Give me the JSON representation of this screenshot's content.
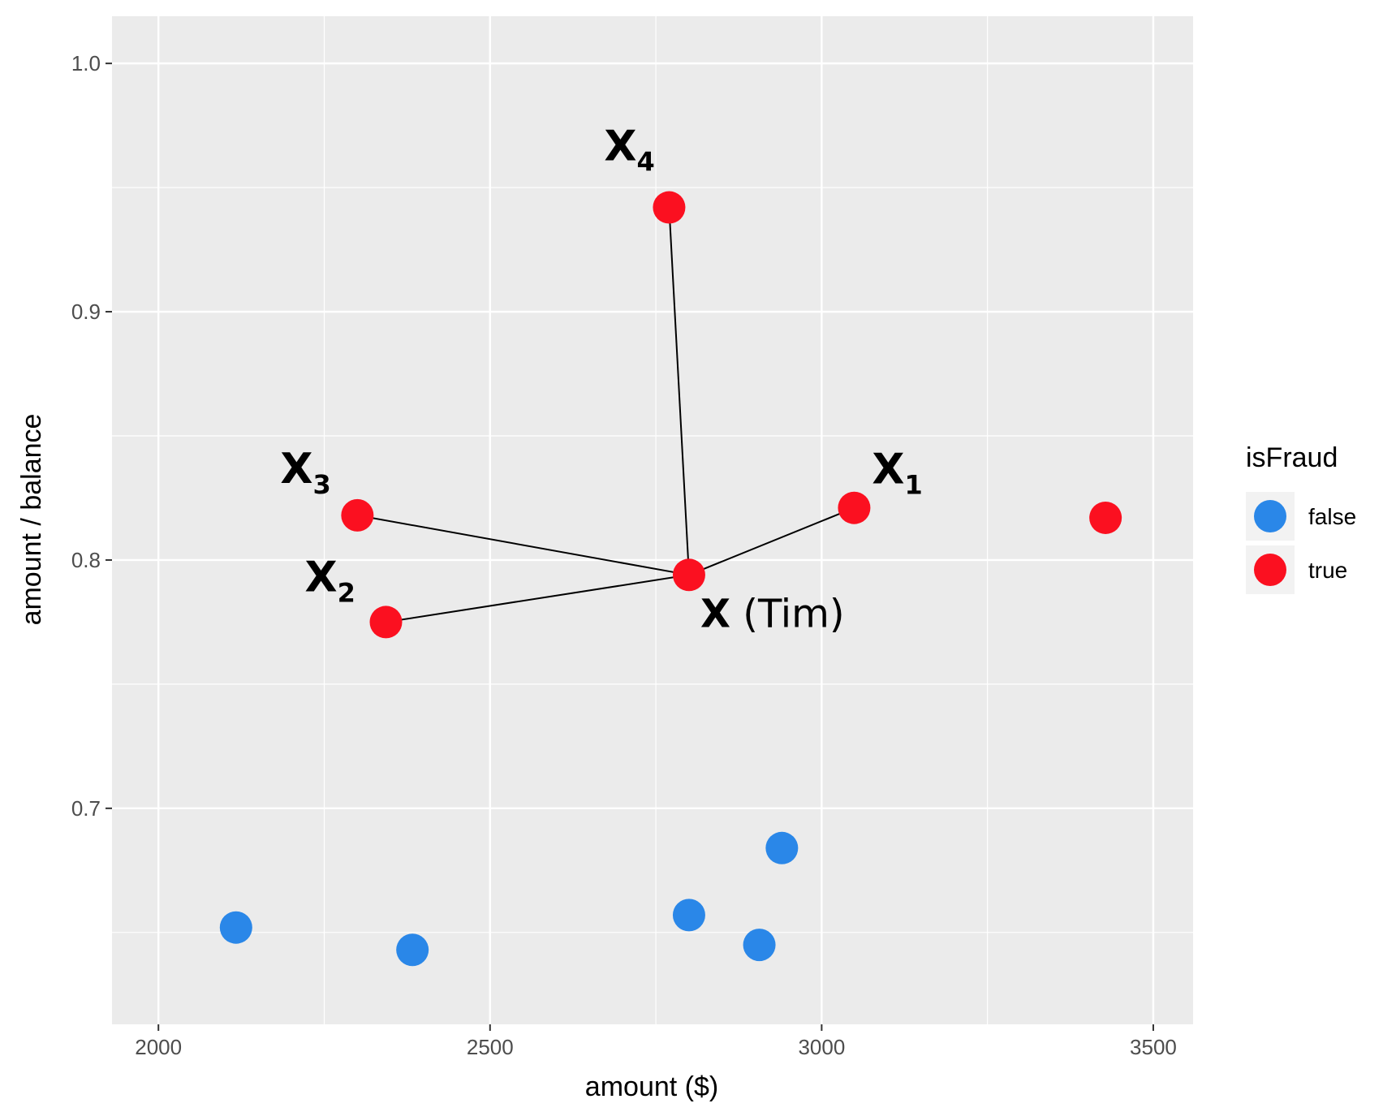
{
  "chart_data": {
    "type": "scatter",
    "xlabel": "amount ($)",
    "ylabel": "amount / balance",
    "xlim": [
      1930,
      3560
    ],
    "ylim": [
      0.613,
      1.019
    ],
    "x_ticks": [
      2000,
      2500,
      3000,
      3500
    ],
    "x_tick_labels": [
      "2000",
      "2500",
      "3000",
      "3500"
    ],
    "y_ticks": [
      0.7,
      0.8,
      0.9,
      1.0
    ],
    "y_tick_labels": [
      "0.7",
      "0.8",
      "0.9",
      "1.0"
    ],
    "grid": true,
    "legend": {
      "title": "isFraud",
      "placement": "right",
      "entries": [
        {
          "label": "false",
          "color": "#2a87e8"
        },
        {
          "label": "true",
          "color": "#fb1020"
        }
      ]
    },
    "series": [
      {
        "name": "false",
        "color": "#2a87e8",
        "points": [
          {
            "x": 2117,
            "y": 0.652
          },
          {
            "x": 2383,
            "y": 0.643
          },
          {
            "x": 2800,
            "y": 0.657
          },
          {
            "x": 2906,
            "y": 0.645
          },
          {
            "x": 2940,
            "y": 0.684
          }
        ]
      },
      {
        "name": "true",
        "color": "#fb1020",
        "points": [
          {
            "x": 2800,
            "y": 0.794,
            "label": "X (Tim)"
          },
          {
            "x": 3049,
            "y": 0.821,
            "label": "X1"
          },
          {
            "x": 2343,
            "y": 0.775,
            "label": "X2"
          },
          {
            "x": 2300,
            "y": 0.818,
            "label": "X3"
          },
          {
            "x": 2770,
            "y": 0.942,
            "label": "X4"
          },
          {
            "x": 3428,
            "y": 0.817
          }
        ]
      }
    ],
    "annotations": [
      {
        "base": "X",
        "sub": "4",
        "text": "X4"
      },
      {
        "base": "X",
        "sub": "3",
        "text": "X3"
      },
      {
        "base": "X",
        "sub": "2",
        "text": "X2"
      },
      {
        "base": "X",
        "sub": "1",
        "text": "X1"
      },
      {
        "base": "X",
        "sub": "",
        "suffix": " (Tim)",
        "text": "X (Tim)"
      }
    ],
    "connections": [
      {
        "from": "X (Tim)",
        "to": "X1"
      },
      {
        "from": "X (Tim)",
        "to": "X2"
      },
      {
        "from": "X (Tim)",
        "to": "X3"
      },
      {
        "from": "X (Tim)",
        "to": "X4"
      }
    ]
  }
}
